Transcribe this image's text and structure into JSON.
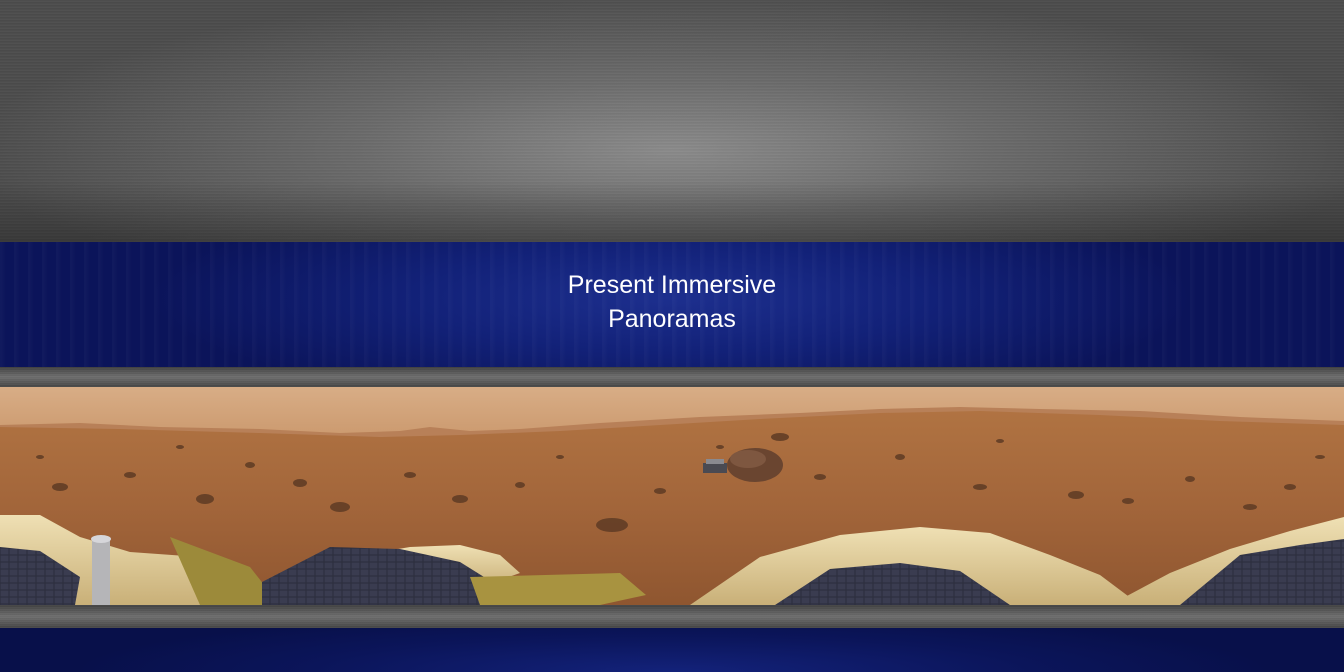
{
  "hero": {
    "title_line1": "Present Immersive",
    "title_line2": "Panoramas"
  },
  "colors": {
    "band_blue": "#122178",
    "metal_gray": "#6a6a6a",
    "mars_sky": "#d9b08a",
    "mars_ground": "#a8683a"
  }
}
